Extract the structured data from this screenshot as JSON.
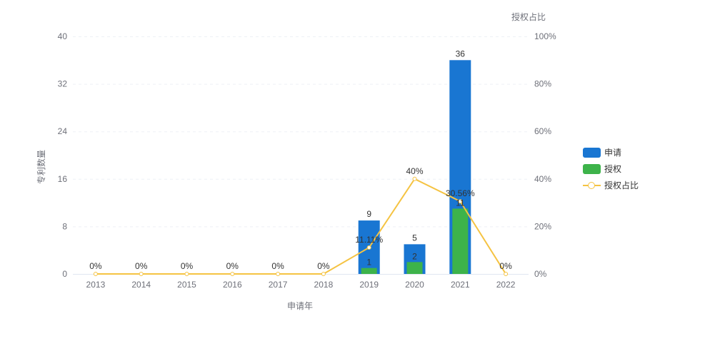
{
  "chart_data": {
    "type": "bar",
    "title": "",
    "xlabel": "申请年",
    "ylabel": "专利数量",
    "y2label": "授权占比",
    "categories": [
      "2013",
      "2014",
      "2015",
      "2016",
      "2017",
      "2018",
      "2019",
      "2020",
      "2021",
      "2022"
    ],
    "series": [
      {
        "name": "申请",
        "type": "bar",
        "axis": "left",
        "color": "#1976d2",
        "values": [
          0,
          0,
          0,
          0,
          0,
          0,
          9,
          5,
          36,
          0
        ]
      },
      {
        "name": "授权",
        "type": "bar",
        "axis": "left",
        "color": "#3db34a",
        "values": [
          0,
          0,
          0,
          0,
          0,
          0,
          1,
          2,
          11,
          0
        ]
      },
      {
        "name": "授权占比",
        "type": "line",
        "axis": "right",
        "color": "#f5c342",
        "values": [
          0,
          0,
          0,
          0,
          0,
          0,
          11.11,
          40,
          30.56,
          0
        ],
        "labels": [
          "0%",
          "0%",
          "0%",
          "0%",
          "0%",
          "0%",
          "11.11%",
          "40%",
          "30.56%",
          "0%"
        ]
      }
    ],
    "ylim": [
      0,
      40
    ],
    "yticks": [
      "0",
      "8",
      "16",
      "24",
      "32",
      "40"
    ],
    "y2lim": [
      0,
      100
    ],
    "y2ticks": [
      "0%",
      "20%",
      "40%",
      "60%",
      "80%",
      "100%"
    ],
    "grid": true,
    "legend_position": "right"
  },
  "legend": {
    "items": [
      {
        "label": "申请",
        "kind": "bar",
        "color": "#1976d2"
      },
      {
        "label": "授权",
        "kind": "bar",
        "color": "#3db34a"
      },
      {
        "label": "授权占比",
        "kind": "line",
        "color": "#f5c342"
      }
    ]
  }
}
